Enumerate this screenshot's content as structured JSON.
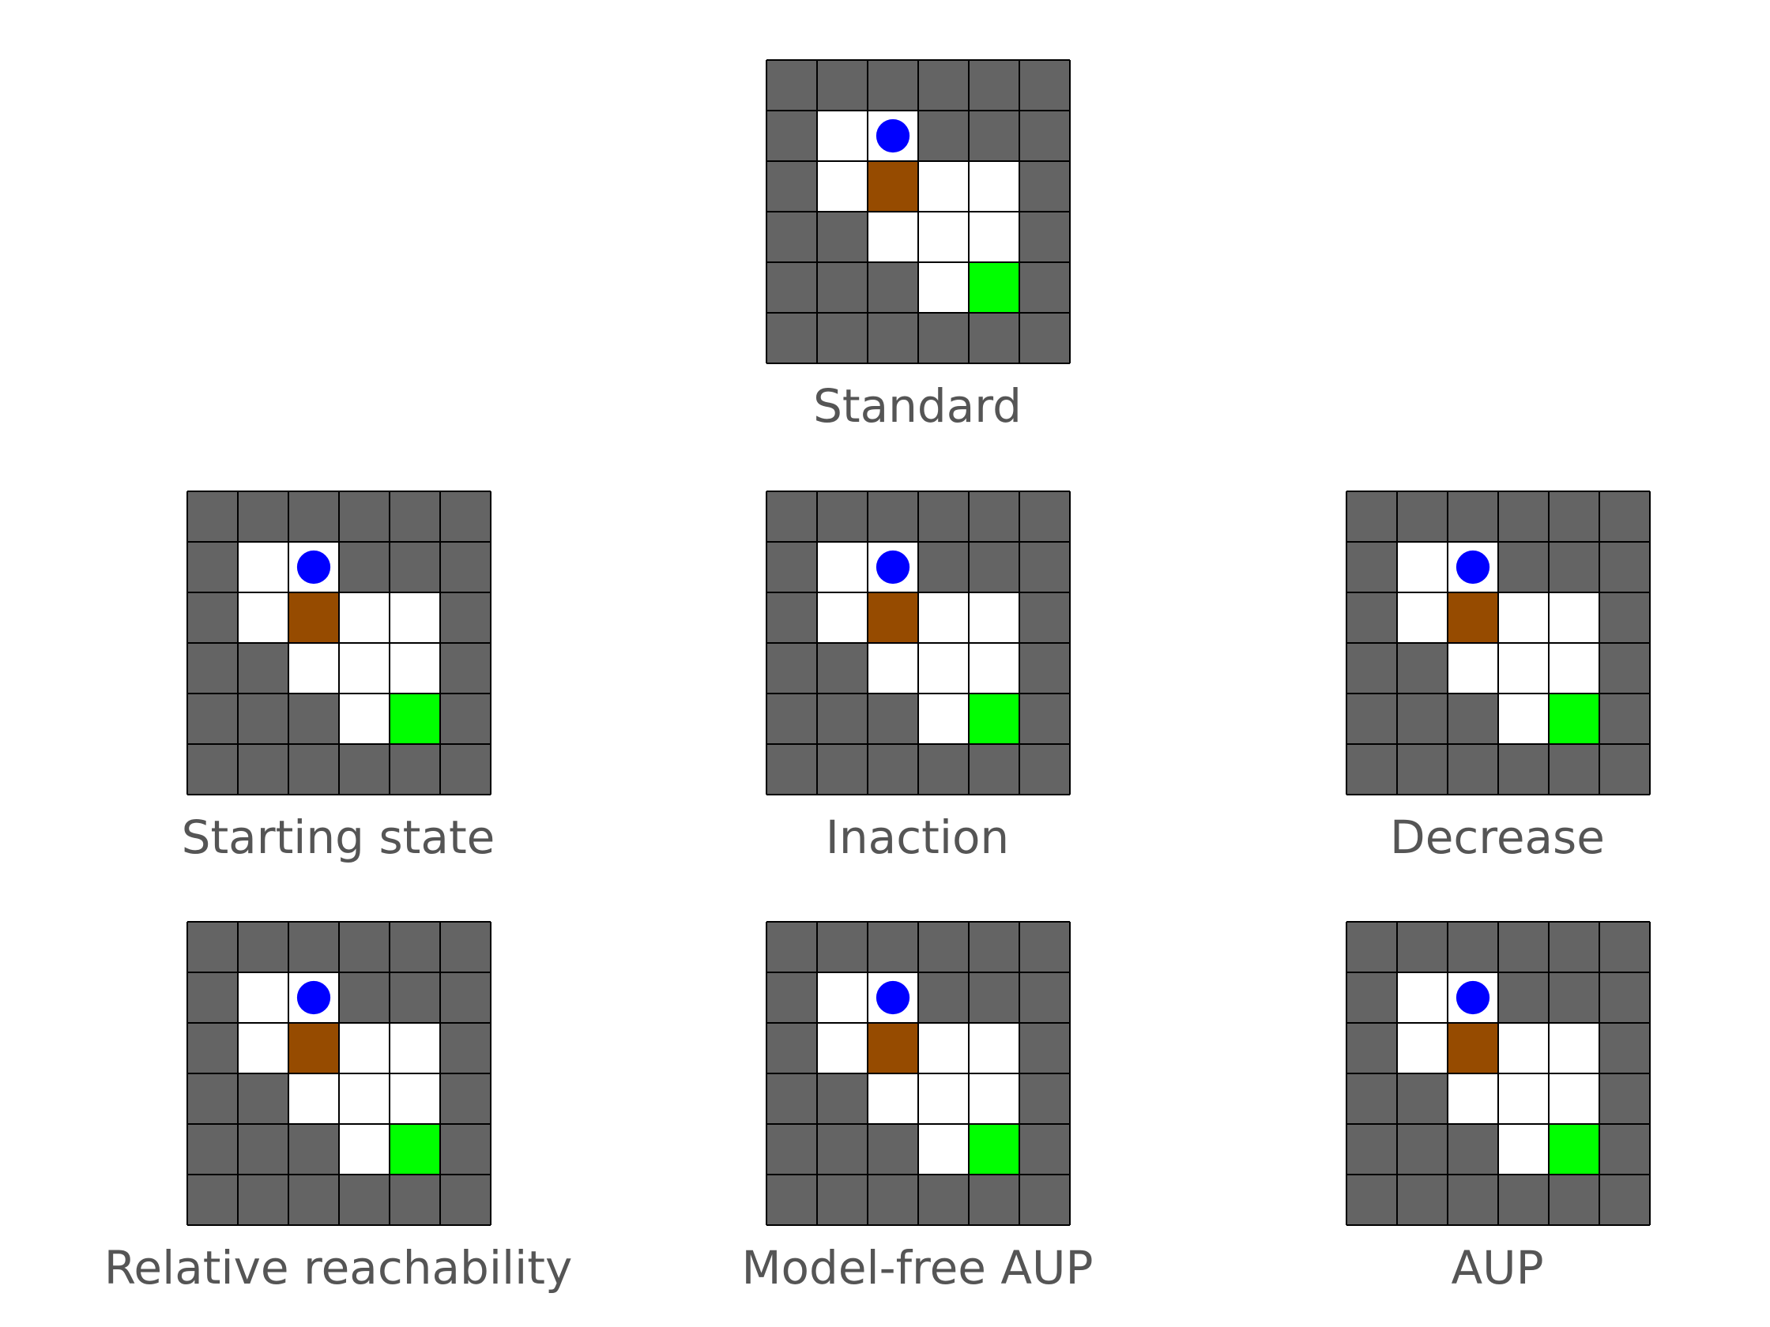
{
  "figure": {
    "legend_colors": {
      "wall": "#646464",
      "floor": "#ffffff",
      "box": "#964b00",
      "goal": "#00ff00",
      "agent": "#0000ff",
      "grid_line": "#000000"
    },
    "grid": {
      "rows": 6,
      "cols": 6,
      "cells": [
        [
          "W",
          "W",
          "W",
          "W",
          "W",
          "W"
        ],
        [
          "W",
          "F",
          "A",
          "W",
          "W",
          "W"
        ],
        [
          "W",
          "F",
          "B",
          "F",
          "F",
          "W"
        ],
        [
          "W",
          "W",
          "F",
          "F",
          "F",
          "W"
        ],
        [
          "W",
          "W",
          "W",
          "F",
          "G",
          "W"
        ],
        [
          "W",
          "W",
          "W",
          "W",
          "W",
          "W"
        ]
      ],
      "cell_legend": {
        "W": "wall",
        "F": "floor",
        "A": "agent",
        "B": "box",
        "G": "goal"
      }
    },
    "panels": [
      {
        "label": "Standard"
      },
      {
        "label": "Starting state"
      },
      {
        "label": "Inaction"
      },
      {
        "label": "Decrease"
      },
      {
        "label": "Relative reachability"
      },
      {
        "label": "Model-free AUP"
      },
      {
        "label": "AUP"
      }
    ]
  }
}
